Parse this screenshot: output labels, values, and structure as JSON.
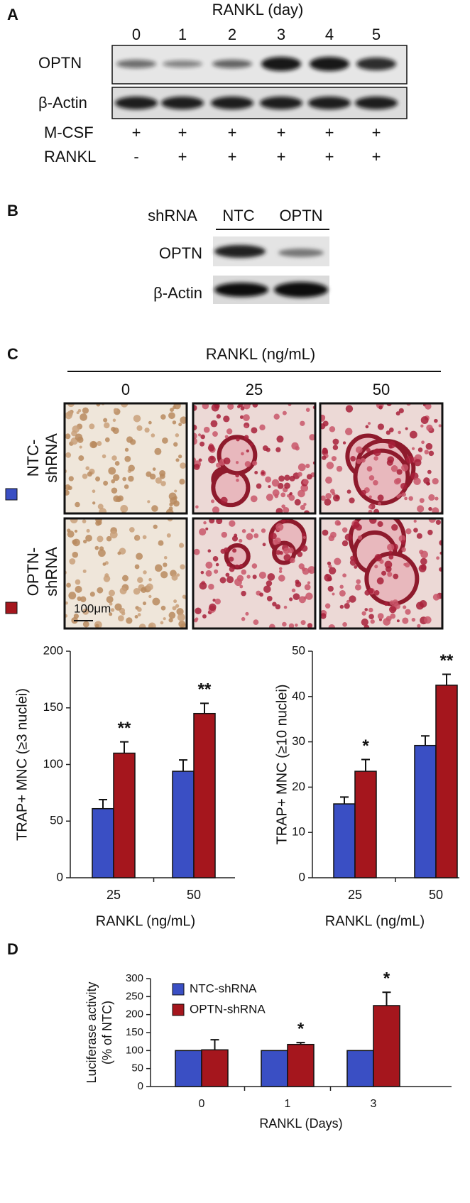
{
  "panel_a": {
    "letter": "A",
    "title": "RANKL (day)",
    "lanes": [
      "0",
      "1",
      "2",
      "3",
      "4",
      "5"
    ],
    "blots": [
      "OPTN",
      "β-Actin"
    ],
    "treatments": [
      {
        "name": "M-CSF",
        "signs": [
          "+",
          "+",
          "+",
          "+",
          "+",
          "+"
        ]
      },
      {
        "name": "RANKL",
        "signs": [
          "-",
          "+",
          "+",
          "+",
          "+",
          "+"
        ]
      }
    ]
  },
  "panel_b": {
    "letter": "B",
    "header": "shRNA",
    "lanes": [
      "NTC",
      "OPTN"
    ],
    "blots": [
      "OPTN",
      "β-Actin"
    ]
  },
  "panel_c": {
    "letter": "C",
    "title": "RANKL (ng/mL)",
    "columns": [
      "0",
      "25",
      "50"
    ],
    "rows": [
      [
        "NTC-",
        "shRNA"
      ],
      [
        "OPTN-",
        "shRNA"
      ]
    ],
    "scale_bar": "100μm"
  },
  "panel_d": {
    "letter": "D"
  },
  "chart_data": [
    {
      "type": "bar",
      "ylabel": "TRAP+ MNC (≥3 nuclei)",
      "xlabel": "RANKL (ng/mL)",
      "categories": [
        "25",
        "50"
      ],
      "series": [
        {
          "color": "#3a4fc4",
          "values": [
            61,
            94
          ],
          "errors": [
            8,
            10
          ]
        },
        {
          "color": "#a5161d",
          "values": [
            110,
            145
          ],
          "errors": [
            10,
            9
          ]
        }
      ],
      "significance": [
        "**",
        "**"
      ],
      "ylim": [
        0,
        200
      ],
      "yticks": [
        0,
        50,
        100,
        150,
        200
      ]
    },
    {
      "type": "bar",
      "ylabel": "TRAP+ MNC (≥10 nuclei)",
      "xlabel": "RANKL (ng/mL)",
      "categories": [
        "25",
        "50"
      ],
      "series": [
        {
          "color": "#3a4fc4",
          "values": [
            16.3,
            29.2
          ],
          "errors": [
            1.5,
            2.1
          ]
        },
        {
          "color": "#a5161d",
          "values": [
            23.5,
            42.5
          ],
          "errors": [
            2.6,
            2.4
          ]
        }
      ],
      "significance": [
        "*",
        "**"
      ],
      "ylim": [
        0,
        50
      ],
      "yticks": [
        0,
        10,
        20,
        30,
        40,
        50
      ]
    },
    {
      "type": "bar",
      "ylabel": [
        "Luciferase activity",
        "(% of NTC)"
      ],
      "xlabel": "RANKL (Days)",
      "categories": [
        "0",
        "1",
        "3"
      ],
      "series": [
        {
          "name": "NTC-shRNA",
          "color": "#3a4fc4",
          "values": [
            100,
            100,
            100
          ]
        },
        {
          "name": "OPTN-shRNA",
          "color": "#a5161d",
          "values": [
            102,
            117,
            225
          ],
          "errors": [
            28,
            5,
            37
          ]
        }
      ],
      "significance": [
        null,
        "*",
        "*"
      ],
      "ylim": [
        0,
        300
      ],
      "yticks": [
        0,
        50,
        100,
        150,
        200,
        250,
        300
      ],
      "legend": "upper left"
    }
  ]
}
